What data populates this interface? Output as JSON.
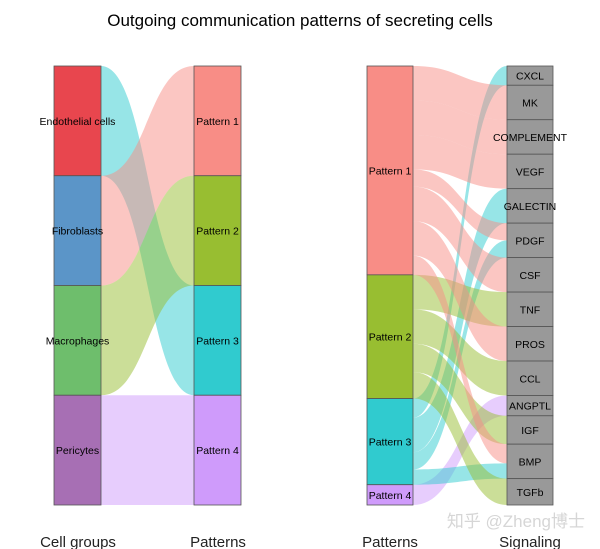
{
  "chart_data": [
    {
      "type": "alluvial",
      "title": "Outgoing communication patterns of secreting cells",
      "left_axis_label": "Cell groups",
      "right_axis_label": "Patterns",
      "left_nodes": [
        {
          "name": "Endothelial cells",
          "color": "#E8464E"
        },
        {
          "name": "Fibroblasts",
          "color": "#5B95C8"
        },
        {
          "name": "Macrophages",
          "color": "#6EBE6C"
        },
        {
          "name": "Pericytes",
          "color": "#A76FB4"
        }
      ],
      "right_nodes": [
        {
          "name": "Pattern 1",
          "color": "#F88D86"
        },
        {
          "name": "Pattern 2",
          "color": "#98BE31"
        },
        {
          "name": "Pattern 3",
          "color": "#30CBCF"
        },
        {
          "name": "Pattern 4",
          "color": "#CF9BFB"
        }
      ],
      "flows": [
        {
          "from": "Endothelial cells",
          "to": "Pattern 3",
          "value": 1
        },
        {
          "from": "Fibroblasts",
          "to": "Pattern 1",
          "value": 1
        },
        {
          "from": "Macrophages",
          "to": "Pattern 2",
          "value": 1
        },
        {
          "from": "Pericytes",
          "to": "Pattern 4",
          "value": 1
        }
      ],
      "flow_color": "target"
    },
    {
      "type": "alluvial",
      "left_axis_label": "Patterns",
      "right_axis_label": "Signaling",
      "left_nodes": [
        {
          "name": "Pattern 1",
          "color": "#F88D86"
        },
        {
          "name": "Pattern 2",
          "color": "#98BE31"
        },
        {
          "name": "Pattern 3",
          "color": "#30CBCF"
        },
        {
          "name": "Pattern 4",
          "color": "#CF9BFB"
        }
      ],
      "right_nodes": [
        {
          "name": "CXCL",
          "color": "#999999"
        },
        {
          "name": "MK",
          "color": "#999999"
        },
        {
          "name": "COMPLEMENT",
          "color": "#999999"
        },
        {
          "name": "VEGF",
          "color": "#999999"
        },
        {
          "name": "GALECTIN",
          "color": "#999999"
        },
        {
          "name": "PDGF",
          "color": "#999999"
        },
        {
          "name": "CSF",
          "color": "#999999"
        },
        {
          "name": "TNF",
          "color": "#999999"
        },
        {
          "name": "PROS",
          "color": "#999999"
        },
        {
          "name": "CCL",
          "color": "#999999"
        },
        {
          "name": "ANGPTL",
          "color": "#999999"
        },
        {
          "name": "IGF",
          "color": "#999999"
        },
        {
          "name": "BMP",
          "color": "#999999"
        },
        {
          "name": "TGFb",
          "color": "#999999"
        }
      ],
      "flows": [
        {
          "from": "Pattern 3",
          "to": "CXCL",
          "value": 19
        },
        {
          "from": "Pattern 1",
          "to": "MK",
          "value": 34
        },
        {
          "from": "Pattern 1",
          "to": "COMPLEMENT",
          "value": 34
        },
        {
          "from": "Pattern 1",
          "to": "VEGF",
          "value": 34
        },
        {
          "from": "Pattern 3",
          "to": "GALECTIN",
          "value": 34
        },
        {
          "from": "Pattern 1",
          "to": "PDGF",
          "value": 17
        },
        {
          "from": "Pattern 3",
          "to": "PDGF",
          "value": 17
        },
        {
          "from": "Pattern 1",
          "to": "CSF",
          "value": 34
        },
        {
          "from": "Pattern 2",
          "to": "TNF",
          "value": 34
        },
        {
          "from": "Pattern 1",
          "to": "PROS",
          "value": 34
        },
        {
          "from": "Pattern 2",
          "to": "CCL",
          "value": 34
        },
        {
          "from": "Pattern 4",
          "to": "ANGPTL",
          "value": 20
        },
        {
          "from": "Pattern 2",
          "to": "IGF",
          "value": 28
        },
        {
          "from": "Pattern 1",
          "to": "BMP",
          "value": 19
        },
        {
          "from": "Pattern 3",
          "to": "BMP",
          "value": 15
        },
        {
          "from": "Pattern 2",
          "to": "TGFb",
          "value": 26
        }
      ],
      "flow_color": "source"
    }
  ],
  "watermark": "知乎 @Zheng博士"
}
